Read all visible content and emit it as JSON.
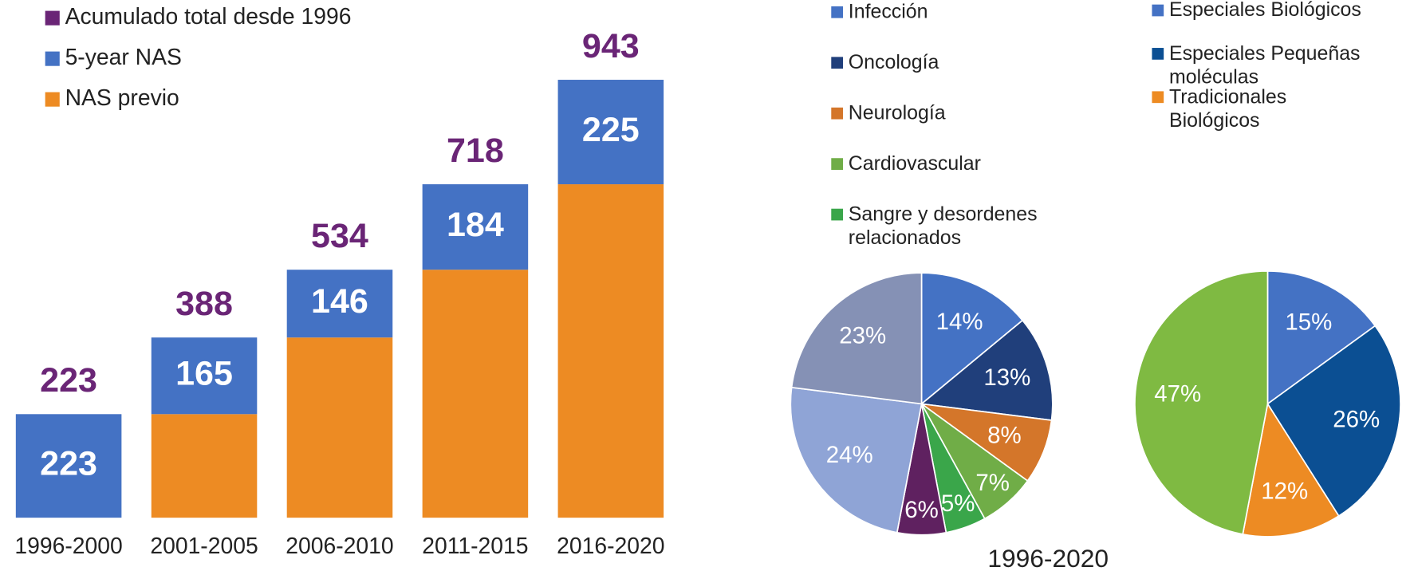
{
  "chart_data": [
    {
      "type": "bar",
      "categories": [
        "1996-2000",
        "2001-2005",
        "2006-2010",
        "2011-2015",
        "2016-2020"
      ],
      "totals": {
        "name": "Acumulado total desde 1996",
        "color": "#6a2576",
        "values": [
          223,
          388,
          534,
          718,
          943
        ]
      },
      "series": [
        {
          "name": "NAS previo",
          "color": "#ed8b23",
          "values": [
            0,
            223,
            388,
            534,
            718
          ],
          "show_labels": false
        },
        {
          "name": "5-year NAS",
          "color": "#4472c4",
          "values": [
            223,
            165,
            146,
            184,
            225
          ],
          "show_labels": true
        }
      ],
      "ylim": [
        0,
        1000
      ]
    },
    {
      "type": "pie",
      "categories": [
        "Infección",
        "Oncología",
        "Neurología",
        "Cardiovascular",
        "Sangre y desordenes relacionados",
        null,
        null,
        null
      ],
      "values": [
        14,
        13,
        8,
        7,
        5,
        6,
        24,
        23
      ],
      "value_labels": [
        "14%",
        "13%",
        "8%",
        "7%",
        "5%",
        "6%",
        "24%",
        "23%"
      ],
      "colors": [
        "#4472c4",
        "#203f7b",
        "#d4762a",
        "#70ad47",
        "#3aa64a",
        "#5f2160",
        "#8fa4d6",
        "#8591b5"
      ],
      "xlabel": "1996-2020"
    },
    {
      "type": "pie",
      "categories": [
        "Especiales Biológicos",
        "Especiales Pequeñas moléculas",
        "Tradicionales Biológicos",
        null
      ],
      "values": [
        15,
        26,
        12,
        47
      ],
      "value_labels": [
        "15%",
        "26%",
        "12%",
        "47%"
      ],
      "colors": [
        "#4472c4",
        "#0b4f93",
        "#ed8b23",
        "#7fba42"
      ]
    }
  ]
}
